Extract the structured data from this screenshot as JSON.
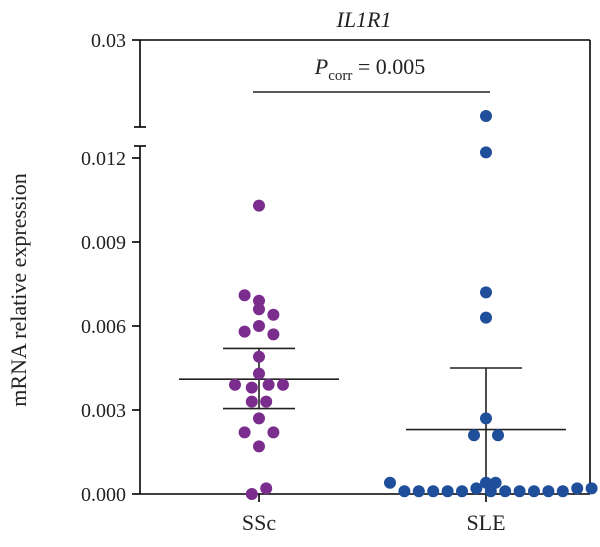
{
  "chart_data": {
    "type": "scatter",
    "title": "IL1R1",
    "ylabel": "mRNA relative expression",
    "categories": [
      "SSc",
      "SLE"
    ],
    "yticks_lower": [
      "0.000",
      "0.003",
      "0.006",
      "0.009",
      "0.012"
    ],
    "yticks_upper": [
      "0.03"
    ],
    "ylim_lower": [
      0,
      0.0125
    ],
    "ylim_upper_tick": 0.03,
    "axis_break": true,
    "annotation": {
      "p_symbol": "P",
      "p_subscript": "corr",
      "p_text": " = 0.005"
    },
    "series": [
      {
        "category": "SSc",
        "color": "#7B2D8E",
        "mean": 0.0041,
        "err_low": 0.00305,
        "err_high": 0.0052,
        "points": [
          {
            "offset": 0.0,
            "value": 0.0103
          },
          {
            "offset": -0.6,
            "value": 0.0071
          },
          {
            "offset": 0.0,
            "value": 0.0069
          },
          {
            "offset": 0.0,
            "value": 0.0066
          },
          {
            "offset": 0.6,
            "value": 0.0064
          },
          {
            "offset": 0.0,
            "value": 0.006
          },
          {
            "offset": -0.6,
            "value": 0.0058
          },
          {
            "offset": 0.6,
            "value": 0.0057
          },
          {
            "offset": 0.0,
            "value": 0.0049
          },
          {
            "offset": 0.0,
            "value": 0.0043
          },
          {
            "offset": -1.0,
            "value": 0.0039
          },
          {
            "offset": -0.3,
            "value": 0.0038
          },
          {
            "offset": 0.4,
            "value": 0.0039
          },
          {
            "offset": 1.0,
            "value": 0.0039
          },
          {
            "offset": -0.3,
            "value": 0.0033
          },
          {
            "offset": 0.3,
            "value": 0.0033
          },
          {
            "offset": 0.0,
            "value": 0.0027
          },
          {
            "offset": -0.6,
            "value": 0.0022
          },
          {
            "offset": 0.6,
            "value": 0.0022
          },
          {
            "offset": 0.0,
            "value": 0.0017
          },
          {
            "offset": 0.3,
            "value": 0.0002
          },
          {
            "offset": -0.3,
            "value": 0.0
          }
        ]
      },
      {
        "category": "SLE",
        "color": "#1F4E9A",
        "mean": 0.0023,
        "err_low": 0.0,
        "err_high": 0.0045,
        "points": [
          {
            "offset": 0.0,
            "value": 0.0135
          },
          {
            "offset": 0.0,
            "value": 0.0122
          },
          {
            "offset": 0.0,
            "value": 0.0072
          },
          {
            "offset": 0.0,
            "value": 0.0063
          },
          {
            "offset": 0.0,
            "value": 0.0027
          },
          {
            "offset": -0.5,
            "value": 0.0021
          },
          {
            "offset": 0.5,
            "value": 0.0021
          },
          {
            "offset": -4.0,
            "value": 0.0004
          },
          {
            "offset": -3.4,
            "value": 0.0001
          },
          {
            "offset": -2.8,
            "value": 0.0001
          },
          {
            "offset": -2.2,
            "value": 0.0001
          },
          {
            "offset": -1.6,
            "value": 0.0001
          },
          {
            "offset": -1.0,
            "value": 0.0001
          },
          {
            "offset": -0.4,
            "value": 0.0002
          },
          {
            "offset": 0.0,
            "value": 0.0004
          },
          {
            "offset": 0.4,
            "value": 0.0004
          },
          {
            "offset": 0.2,
            "value": 0.0001
          },
          {
            "offset": 0.8,
            "value": 0.0001
          },
          {
            "offset": 1.4,
            "value": 0.0001
          },
          {
            "offset": 2.0,
            "value": 0.0001
          },
          {
            "offset": 2.6,
            "value": 0.0001
          },
          {
            "offset": 3.2,
            "value": 0.0001
          },
          {
            "offset": 3.8,
            "value": 0.0002
          },
          {
            "offset": 4.4,
            "value": 0.0002
          }
        ]
      }
    ]
  }
}
